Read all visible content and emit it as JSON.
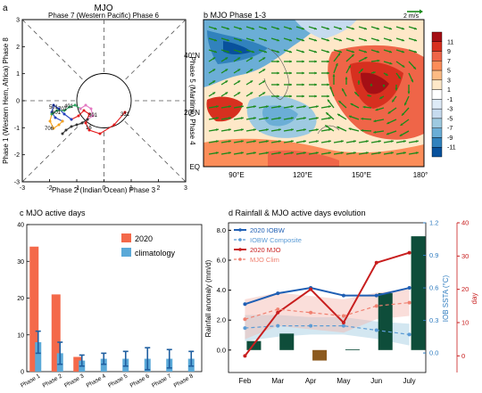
{
  "panel_a": {
    "letter": "a",
    "title": "MJO",
    "label_top": "Phase 7 (Western Pacific) Phase 6",
    "label_bottom": "Phase 2 (Indian Ocean) Phase 3",
    "label_left": "Phase 1 (Western Hem, Africa) Phase 8",
    "label_right": "Phase 5 (Maritime) Phase 4",
    "ticks": [
      "-3",
      "-2",
      "-1",
      "0",
      "1",
      "2",
      "3"
    ],
    "date_labels": [
      "501",
      "601",
      "701",
      "401",
      "331",
      "301",
      "16",
      "706"
    ],
    "segment_colors": [
      "#e31a1c",
      "#1f3fbf",
      "#f7a21b",
      "#2ca25f",
      "#e377c2",
      "#333333"
    ]
  },
  "panel_b": {
    "title": "b MJO Phase 1-3",
    "ref_label": "2 m/s",
    "lat_labels": [
      "40°N",
      "20°N",
      "EQ"
    ],
    "lon_labels": [
      "90°E",
      "120°E",
      "150°E",
      "180°"
    ],
    "colorbar_labels": [
      "11",
      "9",
      "7",
      "5",
      "3",
      "1",
      "-1",
      "-3",
      "-5",
      "-7",
      "-9",
      "-11"
    ],
    "colorbar_colors": [
      "#a50f15",
      "#d7301f",
      "#ef6548",
      "#fc8d59",
      "#fdbb84",
      "#fee8c8",
      "#ffffff",
      "#deebf7",
      "#c6dbef",
      "#9ecae1",
      "#6baed6",
      "#3182bd",
      "#08519c"
    ]
  },
  "chart_data": [
    {
      "type": "bar",
      "title": "c MJO active days",
      "categories": [
        "Phase 1",
        "Phase 2",
        "Phase 3",
        "Phase 4",
        "Phase 5",
        "Phase 6",
        "Phase 7",
        "Phase 8"
      ],
      "series": [
        {
          "name": "2020",
          "color": "#f4694a",
          "values": [
            34,
            21,
            4,
            0,
            0,
            0,
            0,
            0
          ]
        },
        {
          "name": "climatology",
          "color": "#5aa9d8",
          "values": [
            8,
            5,
            3,
            3.5,
            3.5,
            3.5,
            3.5,
            3.5
          ],
          "error": [
            3,
            3,
            1.5,
            1.5,
            2,
            3,
            2.5,
            2
          ]
        }
      ],
      "ylim": [
        0,
        40
      ],
      "yticks": [
        "0",
        "10",
        "20",
        "30",
        "40"
      ],
      "legend": "top-right"
    },
    {
      "type": "bar+line",
      "title": "d Rainfall & MJO active days evolution",
      "categories": [
        "Feb",
        "Mar",
        "Apr",
        "May",
        "Jun",
        "July"
      ],
      "bars": {
        "name": "Rainfall anomaly",
        "color": "#0e4d3a",
        "values": [
          0.6,
          1.1,
          -0.7,
          0.05,
          3.8,
          7.6
        ]
      },
      "left_axis": {
        "label": "Rainfall anomaly (mm/d)",
        "ylim": [
          -1.5,
          8.5
        ],
        "ticks": [
          "0.0",
          "2.0",
          "4.0",
          "6.0",
          "8.0"
        ]
      },
      "right_axis_1": {
        "label": "IOB SSTA (°C)",
        "color": "#2e7bbf",
        "ylim": [
          -0.18,
          1.2
        ],
        "ticks": [
          "0.0",
          "0.3",
          "0.6",
          "0.9",
          "1.2"
        ]
      },
      "right_axis_2": {
        "label": "day",
        "color": "#c81e1e",
        "ylim": [
          -5,
          40
        ],
        "ticks": [
          "0",
          "10",
          "20",
          "30",
          "40"
        ]
      },
      "series": [
        {
          "name": "2020 IOBW",
          "axis": "right1",
          "color": "#1f5fb4",
          "style": "solid",
          "values": [
            0.45,
            0.55,
            0.6,
            0.53,
            0.53,
            0.6
          ]
        },
        {
          "name": "IOBW Composite",
          "axis": "right1",
          "color": "#5b9bd5",
          "style": "dashed",
          "values": [
            0.23,
            0.25,
            0.25,
            0.25,
            0.21,
            0.17
          ],
          "band": [
            0.12,
            0.1,
            0.08,
            0.08,
            0.08,
            0.1
          ]
        },
        {
          "name": "2020 MJO",
          "axis": "right2",
          "color": "#c81e1e",
          "style": "solid",
          "values": [
            0,
            13,
            20,
            10,
            28,
            31
          ]
        },
        {
          "name": "MJO Clim",
          "axis": "right2",
          "color": "#f08070",
          "style": "dashed",
          "values": [
            11,
            14,
            13,
            12,
            15,
            16
          ],
          "band": [
            6,
            5,
            5,
            5,
            4,
            4
          ]
        }
      ],
      "legend": "top-left"
    }
  ]
}
